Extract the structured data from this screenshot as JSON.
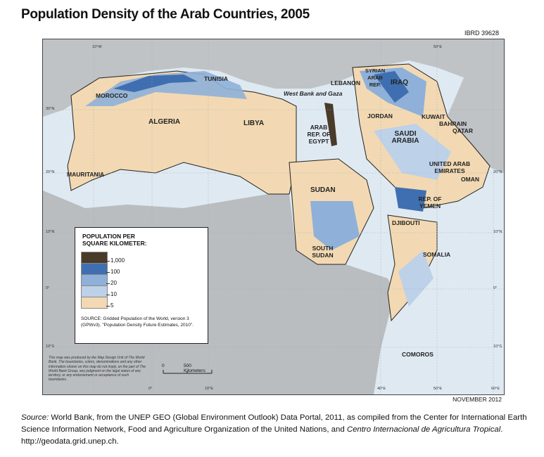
{
  "title": "Population Density of the Arab Countries, 2005",
  "map_id": "IBRD 39628",
  "date": "NOVEMBER 2012",
  "legend": {
    "title": "POPULATION PER SQUARE KILOMETER:",
    "classes": [
      {
        "label": "1,000",
        "color": "#4a3a2a"
      },
      {
        "label": "100",
        "color": "#3f6fb0"
      },
      {
        "label": "20",
        "color": "#8fb0d8"
      },
      {
        "label": "10",
        "color": "#bdd1e8"
      },
      {
        "label": "5",
        "color": "#f2d9b3"
      }
    ],
    "source": "SOURCE: Gridded Population of the World, version 3 (GPWv3). \"Population Density Future Estimates, 2010\"."
  },
  "disclaimer": "This map was produced by the Map Design Unit of The World Bank. The boundaries, colors, denominations and any other information shown on this map do not imply, on the part of The World Bank Group, any judgment on the legal status of any territory, or any endorsement or acceptance of such boundaries.",
  "scale": {
    "zero": "0",
    "end": "500 Kilometers"
  },
  "countries": {
    "morocco": "MOROCCO",
    "algeria": "ALGERIA",
    "tunisia": "TUNISIA",
    "libya": "LIBYA",
    "mauritania": "MAURITANIA",
    "egypt": "ARAB REP. OF EGYPT",
    "sudan": "SUDAN",
    "south_sudan": "SOUTH SUDAN",
    "saudi": "SAUDI ARABIA",
    "yemen": "REP. OF YEMEN",
    "oman": "OMAN",
    "uae": "UNITED ARAB EMIRATES",
    "qatar": "QATAR",
    "bahrain": "BAHRAIN",
    "kuwait": "KUWAIT",
    "iraq": "IRAQ",
    "syria": "SYRIAN ARAB REP.",
    "lebanon": "LEBANON",
    "jordan": "JORDAN",
    "wbg": "West Bank and Gaza",
    "djibouti": "DJIBOUTI",
    "somalia": "SOMALIA",
    "comoros": "COMOROS"
  },
  "coords": {
    "lon10w": "10°W",
    "lon0": "0°",
    "lon10e": "10°E",
    "lon40e": "40°E",
    "lon50e": "50°E",
    "lon60e": "60°E",
    "lat30n": "30°N",
    "lat20n": "20°N",
    "lat10n": "10°N",
    "lat0": "0°",
    "lat10s": "10°S"
  },
  "source": {
    "prefix": "Source:",
    "text": " World Bank, from the UNEP GEO (Global Environment Outlook) Data Portal, 2011, as compiled from the Center for International Earth Science Information Network, Food and Agriculture Organization of the United Nations, and ",
    "italic": "Centro Internacional de Agricultura Tropical",
    "suffix": ". http://geodata.grid.unep.ch."
  }
}
